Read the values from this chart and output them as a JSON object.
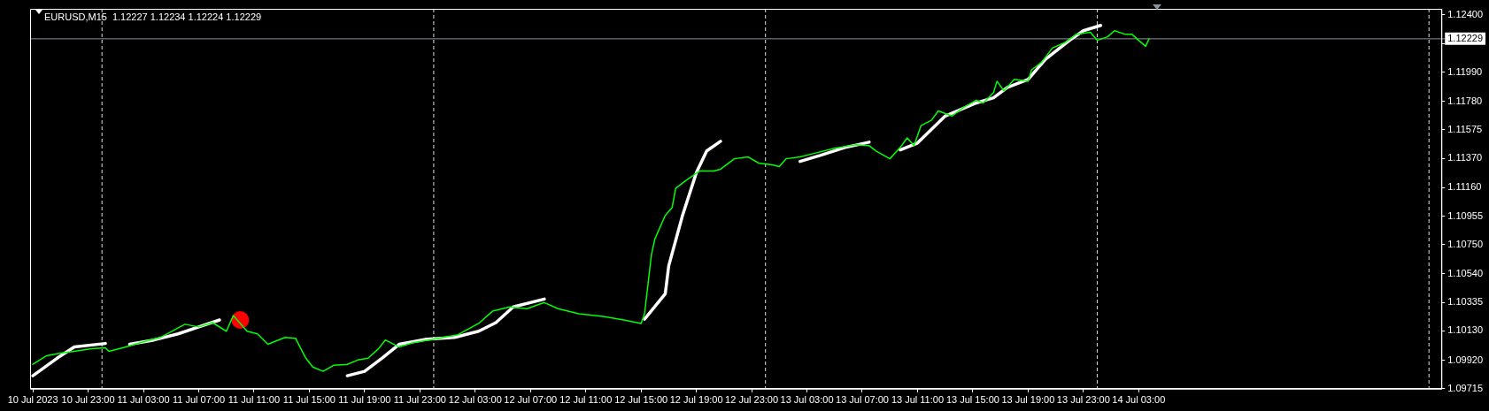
{
  "chart_data": {
    "type": "line",
    "title": "EURUSD,M15",
    "subtitle": "1.12227 1.12234 1.12224 1.12229",
    "xlim": [
      "2023-07-10T18:48",
      "2023-07-15T00:54"
    ],
    "ylim": [
      1.09715,
      1.12444
    ],
    "xticks": [
      {
        "value": "2023-07-10T19:00",
        "label": "10 Jul 2023"
      },
      {
        "value": "2023-07-10T23:00",
        "label": "10 Jul 23:00"
      },
      {
        "value": "2023-07-11T03:00",
        "label": "11 Jul 03:00"
      },
      {
        "value": "2023-07-11T07:00",
        "label": "11 Jul 07:00"
      },
      {
        "value": "2023-07-11T11:00",
        "label": "11 Jul 11:00"
      },
      {
        "value": "2023-07-11T15:00",
        "label": "11 Jul 15:00"
      },
      {
        "value": "2023-07-11T19:00",
        "label": "11 Jul 19:00"
      },
      {
        "value": "2023-07-11T23:00",
        "label": "11 Jul 23:00"
      },
      {
        "value": "2023-07-12T03:00",
        "label": "12 Jul 03:00"
      },
      {
        "value": "2023-07-12T07:00",
        "label": "12 Jul 07:00"
      },
      {
        "value": "2023-07-12T11:00",
        "label": "12 Jul 11:00"
      },
      {
        "value": "2023-07-12T15:00",
        "label": "12 Jul 15:00"
      },
      {
        "value": "2023-07-12T19:00",
        "label": "12 Jul 19:00"
      },
      {
        "value": "2023-07-12T23:00",
        "label": "12 Jul 23:00"
      },
      {
        "value": "2023-07-13T03:00",
        "label": "13 Jul 03:00"
      },
      {
        "value": "2023-07-13T07:00",
        "label": "13 Jul 07:00"
      },
      {
        "value": "2023-07-13T11:00",
        "label": "13 Jul 11:00"
      },
      {
        "value": "2023-07-13T15:00",
        "label": "13 Jul 15:00"
      },
      {
        "value": "2023-07-13T19:00",
        "label": "13 Jul 19:00"
      },
      {
        "value": "2023-07-13T23:00",
        "label": "13 Jul 23:00"
      },
      {
        "value": "2023-07-14T03:00",
        "label": "14 Jul 03:00"
      }
    ],
    "yticks": [
      {
        "value": 1.09715,
        "label": "1.09715"
      },
      {
        "value": 1.0992,
        "label": "1.09920"
      },
      {
        "value": 1.1013,
        "label": "1.10130"
      },
      {
        "value": 1.10335,
        "label": "1.10335"
      },
      {
        "value": 1.1054,
        "label": "1.10540"
      },
      {
        "value": 1.1075,
        "label": "1.10750"
      },
      {
        "value": 1.10955,
        "label": "1.10955"
      },
      {
        "value": 1.1116,
        "label": "1.11160"
      },
      {
        "value": 1.1137,
        "label": "1.11370"
      },
      {
        "value": 1.11575,
        "label": "1.11575"
      },
      {
        "value": 1.1178,
        "label": "1.11780"
      },
      {
        "value": 1.1199,
        "label": "1.11990"
      },
      {
        "value": 1.12195,
        "label": null
      },
      {
        "value": 1.124,
        "label": "1.12400"
      }
    ],
    "grid": false,
    "legend": false,
    "ref_lines": [
      {
        "axis": "x",
        "value": "2023-07-11T00:00",
        "label": null,
        "color": "#e0e0e0",
        "line_style": "dashed"
      },
      {
        "axis": "x",
        "value": "2023-07-12T00:00",
        "label": null,
        "color": "#e0e0e0",
        "line_style": "dashed"
      },
      {
        "axis": "x",
        "value": "2023-07-13T00:00",
        "label": null,
        "color": "#e0e0e0",
        "line_style": "dashed"
      },
      {
        "axis": "x",
        "value": "2023-07-14T00:00",
        "label": null,
        "color": "#e0e0e0",
        "line_style": "dashed"
      },
      {
        "axis": "x",
        "value": "2023-07-15T00:00",
        "label": null,
        "color": "#e0e0e0",
        "line_style": "dashed"
      },
      {
        "axis": "y",
        "value": 1.12229,
        "label": "1.12229",
        "color": "#8a939e",
        "line_style": "solid"
      }
    ],
    "series": [
      {
        "color": "#00ff00",
        "marker": "none",
        "line_style": "solid",
        "x": [
          "2023-07-10T19:00",
          "2023-07-10T20:00",
          "2023-07-10T21:00",
          "2023-07-10T22:00",
          "2023-07-10T23:15",
          "2023-07-11T00:15",
          "2023-07-11T00:30",
          "2023-07-11T01:30",
          "2023-07-11T03:00",
          "2023-07-11T04:15",
          "2023-07-11T06:00",
          "2023-07-11T07:00",
          "2023-07-11T08:00",
          "2023-07-11T09:00",
          "2023-07-11T09:30",
          "2023-07-11T10:30",
          "2023-07-11T11:15",
          "2023-07-11T12:00",
          "2023-07-11T13:15",
          "2023-07-11T14:00",
          "2023-07-11T14:45",
          "2023-07-11T15:15",
          "2023-07-11T16:00",
          "2023-07-11T16:45",
          "2023-07-11T17:45",
          "2023-07-11T18:30",
          "2023-07-11T19:15",
          "2023-07-11T20:00",
          "2023-07-11T20:30",
          "2023-07-11T21:30",
          "2023-07-11T22:30",
          "2023-07-12T00:00",
          "2023-07-12T01:45",
          "2023-07-12T03:15",
          "2023-07-12T04:15",
          "2023-07-12T05:30",
          "2023-07-12T06:45",
          "2023-07-12T08:00",
          "2023-07-12T09:00",
          "2023-07-12T10:30",
          "2023-07-12T12:15",
          "2023-07-12T13:45",
          "2023-07-12T15:00",
          "2023-07-12T15:15",
          "2023-07-12T15:45",
          "2023-07-12T16:00",
          "2023-07-12T16:45",
          "2023-07-12T17:15",
          "2023-07-12T17:30",
          "2023-07-12T18:15",
          "2023-07-12T19:15",
          "2023-07-12T20:15",
          "2023-07-12T20:45",
          "2023-07-12T21:45",
          "2023-07-12T22:45",
          "2023-07-12T23:30",
          "2023-07-13T00:30",
          "2023-07-13T01:00",
          "2023-07-13T01:30",
          "2023-07-13T02:30",
          "2023-07-13T03:30",
          "2023-07-13T05:00",
          "2023-07-13T06:30",
          "2023-07-13T07:30",
          "2023-07-13T08:00",
          "2023-07-13T09:00",
          "2023-07-13T09:45",
          "2023-07-13T10:15",
          "2023-07-13T10:45",
          "2023-07-13T11:15",
          "2023-07-13T12:00",
          "2023-07-13T12:30",
          "2023-07-13T13:30",
          "2023-07-13T14:15",
          "2023-07-13T15:15",
          "2023-07-13T15:45",
          "2023-07-13T16:30",
          "2023-07-13T16:45",
          "2023-07-13T17:15",
          "2023-07-13T18:00",
          "2023-07-13T19:00",
          "2023-07-13T19:15",
          "2023-07-13T20:00",
          "2023-07-13T20:45",
          "2023-07-13T21:45",
          "2023-07-13T22:30",
          "2023-07-13T23:30",
          "2023-07-14T00:00",
          "2023-07-14T00:45",
          "2023-07-14T01:15",
          "2023-07-14T02:00",
          "2023-07-14T02:30",
          "2023-07-14T03:00",
          "2023-07-14T03:30",
          "2023-07-14T03:45"
        ],
        "values": [
          1.0989,
          1.09952,
          1.09971,
          1.09984,
          1.10002,
          1.10009,
          1.09984,
          1.10009,
          1.10052,
          1.10084,
          1.10178,
          1.10159,
          1.1019,
          1.10128,
          1.1024,
          1.10128,
          1.10109,
          1.10034,
          1.10084,
          1.10078,
          1.09934,
          1.09871,
          1.0984,
          1.09883,
          1.0989,
          1.09921,
          1.09934,
          1.10002,
          1.10065,
          1.10015,
          1.10046,
          1.10071,
          1.10103,
          1.10184,
          1.10272,
          1.10303,
          1.1029,
          1.10334,
          1.1029,
          1.10253,
          1.10234,
          1.10209,
          1.10184,
          1.10253,
          1.10678,
          1.10791,
          1.1096,
          1.11017,
          1.11154,
          1.11211,
          1.11279,
          1.11279,
          1.11292,
          1.11367,
          1.1138,
          1.11336,
          1.11323,
          1.11311,
          1.11367,
          1.1138,
          1.11405,
          1.11442,
          1.11467,
          1.11461,
          1.11423,
          1.11367,
          1.11448,
          1.11517,
          1.11461,
          1.11605,
          1.11643,
          1.11711,
          1.11674,
          1.1173,
          1.11787,
          1.11768,
          1.11843,
          1.11924,
          1.11855,
          1.11937,
          1.11924,
          1.12006,
          1.12062,
          1.12162,
          1.12206,
          1.12262,
          1.12275,
          1.12218,
          1.12243,
          1.12287,
          1.12262,
          1.12262,
          1.12218,
          1.12175,
          1.12229
        ]
      },
      {
        "color": "#ffffff",
        "marker": "none",
        "line_style": "solid",
        "x": [
          "2023-07-10T19:00",
          "2023-07-10T20:45",
          "2023-07-10T22:00",
          "2023-07-11T00:15",
          "2023-07-11T01:00",
          "2023-07-11T02:00",
          "2023-07-11T03:45",
          "2023-07-11T05:30",
          "2023-07-11T07:00",
          "2023-07-11T08:30",
          "2023-07-11T11:00",
          "2023-07-11T17:45",
          "2023-07-11T19:00",
          "2023-07-11T20:15",
          "2023-07-11T21:30",
          "2023-07-11T23:30",
          "2023-07-12T01:30",
          "2023-07-12T03:15",
          "2023-07-12T04:30",
          "2023-07-12T05:45",
          "2023-07-12T08:00",
          "2023-07-12T12:00",
          "2023-07-12T15:15",
          "2023-07-12T16:45",
          "2023-07-12T17:00",
          "2023-07-12T18:00",
          "2023-07-12T19:00",
          "2023-07-12T19:45",
          "2023-07-12T20:45",
          "2023-07-12T23:00",
          "2023-07-13T02:30",
          "2023-07-13T04:00",
          "2023-07-13T05:45",
          "2023-07-13T07:30",
          "2023-07-13T08:30",
          "2023-07-13T09:45",
          "2023-07-13T11:00",
          "2023-07-13T13:00",
          "2023-07-13T15:15",
          "2023-07-13T16:30",
          "2023-07-13T17:30",
          "2023-07-13T19:00",
          "2023-07-13T20:15",
          "2023-07-13T22:00",
          "2023-07-13T23:00",
          "2023-07-14T00:15"
        ],
        "values": [
          1.09808,
          1.09934,
          1.10015,
          1.1004,
          null,
          1.10034,
          1.10065,
          1.10109,
          1.10159,
          1.10209,
          null,
          1.09808,
          1.0984,
          1.09934,
          1.10034,
          1.10071,
          1.10084,
          1.10128,
          1.1019,
          1.10303,
          1.10359,
          null,
          1.10215,
          1.10397,
          1.10597,
          1.1096,
          1.11267,
          1.11423,
          1.11492,
          null,
          1.11348,
          1.11392,
          1.11448,
          1.11486,
          null,
          1.1143,
          1.1148,
          1.11674,
          1.11768,
          1.11805,
          1.1188,
          1.11937,
          1.12081,
          1.12218,
          1.12287,
          1.12325
        ]
      },
      {
        "type": "scatter",
        "color": "#ff0000",
        "marker": "circle",
        "x": [
          "2023-07-11T10:00"
        ],
        "values": [
          1.10209
        ]
      }
    ]
  }
}
